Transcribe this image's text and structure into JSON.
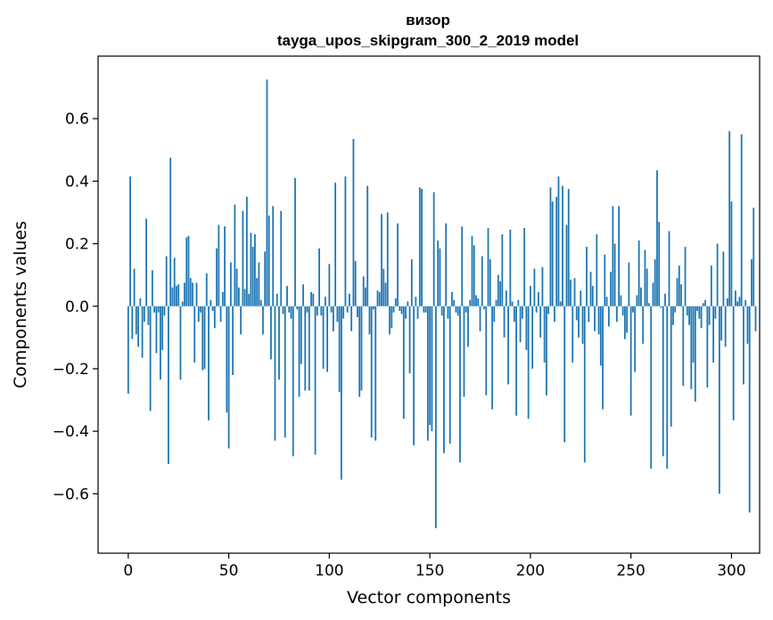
{
  "chart_data": {
    "type": "bar",
    "title": "визор",
    "subtitle": "tayga_upos_skipgram_300_2_2019 model",
    "xlabel": "Vector components",
    "ylabel": "Components values",
    "xlim": [
      -15,
      314
    ],
    "ylim": [
      -0.79,
      0.8
    ],
    "xticks": [
      0,
      50,
      100,
      150,
      200,
      250,
      300
    ],
    "yticks": [
      -0.6,
      -0.4,
      -0.2,
      0.0,
      0.2,
      0.4,
      0.6
    ],
    "ytick_labels": [
      "−0.6",
      "−0.4",
      "−0.2",
      "0.0",
      "0.2",
      "0.4",
      "0.6"
    ],
    "grid": false,
    "bar_color": "#1f77b4",
    "values": [
      -0.28,
      0.415,
      -0.105,
      0.12,
      -0.09,
      -0.13,
      0.025,
      -0.165,
      -0.05,
      0.28,
      -0.06,
      -0.335,
      0.115,
      -0.02,
      -0.15,
      -0.02,
      -0.235,
      -0.14,
      -0.03,
      0.16,
      -0.505,
      0.475,
      0.06,
      0.155,
      0.065,
      0.07,
      -0.235,
      0.015,
      0.075,
      0.22,
      0.225,
      0.09,
      0.075,
      -0.18,
      0.075,
      -0.05,
      -0.02,
      -0.205,
      -0.2,
      0.105,
      -0.365,
      0.02,
      -0.015,
      -0.07,
      0.185,
      0.26,
      -0.05,
      0.045,
      0.255,
      -0.34,
      -0.455,
      0.14,
      -0.22,
      0.325,
      0.12,
      0.06,
      -0.09,
      0.305,
      0.055,
      0.35,
      0.04,
      0.235,
      0.19,
      0.23,
      0.09,
      0.14,
      0.02,
      -0.09,
      0.175,
      0.725,
      0.29,
      -0.17,
      0.32,
      -0.43,
      0.04,
      -0.235,
      0.305,
      -0.025,
      -0.42,
      0.065,
      -0.02,
      -0.04,
      -0.48,
      0.41,
      -0.01,
      -0.29,
      -0.185,
      0.07,
      -0.27,
      -0.02,
      -0.27,
      0.045,
      0.04,
      -0.475,
      -0.03,
      0.185,
      -0.03,
      -0.2,
      0.03,
      -0.21,
      0.135,
      -0.02,
      -0.08,
      0.395,
      -0.05,
      -0.275,
      -0.555,
      -0.04,
      0.415,
      -0.02,
      0.04,
      -0.08,
      0.535,
      0.145,
      -0.035,
      -0.29,
      -0.27,
      0.095,
      0.06,
      0.385,
      -0.09,
      -0.42,
      -0.01,
      -0.43,
      0.05,
      0.045,
      0.295,
      0.12,
      0.075,
      0.3,
      -0.09,
      -0.07,
      -0.02,
      0.025,
      0.265,
      -0.015,
      -0.025,
      -0.36,
      -0.04,
      0.015,
      -0.215,
      0.15,
      -0.445,
      0.03,
      -0.04,
      0.38,
      0.375,
      -0.02,
      -0.02,
      -0.43,
      -0.38,
      -0.4,
      0.365,
      -0.71,
      0.21,
      0.185,
      -0.03,
      -0.47,
      0.265,
      -0.04,
      -0.44,
      0.045,
      0.02,
      -0.02,
      -0.03,
      -0.5,
      0.255,
      -0.29,
      -0.02,
      -0.13,
      0.02,
      0.225,
      0.195,
      0.035,
      0.025,
      -0.08,
      0.16,
      -0.01,
      -0.285,
      0.25,
      0.15,
      -0.33,
      -0.05,
      0.02,
      0.1,
      0.08,
      0.23,
      -0.1,
      0.05,
      -0.25,
      0.245,
      0.015,
      -0.05,
      -0.35,
      0.02,
      -0.115,
      -0.04,
      0.25,
      -0.14,
      -0.36,
      0.065,
      -0.2,
      0.12,
      -0.02,
      0.045,
      -0.1,
      0.125,
      -0.18,
      -0.285,
      -0.025,
      0.38,
      0.335,
      -0.05,
      0.35,
      0.415,
      0.015,
      0.385,
      -0.435,
      0.26,
      0.375,
      0.085,
      -0.18,
      0.09,
      -0.045,
      -0.1,
      0.05,
      -0.12,
      -0.5,
      0.19,
      -0.05,
      0.11,
      0.065,
      -0.08,
      0.23,
      -0.09,
      -0.19,
      -0.33,
      0.165,
      0.03,
      -0.065,
      0.11,
      0.32,
      0.2,
      -0.05,
      0.32,
      0.035,
      -0.03,
      -0.105,
      -0.085,
      0.14,
      -0.35,
      -0.02,
      -0.21,
      0.035,
      0.21,
      0.06,
      -0.12,
      0.18,
      0.12,
      0.01,
      -0.52,
      0.075,
      0.15,
      0.435,
      0.27,
      -0.005,
      -0.48,
      0.04,
      -0.52,
      0.24,
      -0.385,
      -0.06,
      -0.02,
      0.09,
      0.13,
      0.07,
      -0.255,
      0.19,
      -0.03,
      -0.06,
      -0.265,
      -0.18,
      -0.305,
      -0.015,
      -0.04,
      -0.07,
      0.01,
      0.02,
      -0.26,
      -0.06,
      0.13,
      -0.18,
      -0.04,
      0.2,
      -0.6,
      -0.11,
      0.175,
      -0.13,
      0.025,
      0.56,
      0.335,
      -0.365,
      0.05,
      0.015,
      0.03,
      0.55,
      -0.25,
      0.02,
      -0.12,
      -0.66,
      0.15,
      0.315,
      -0.08
    ]
  }
}
